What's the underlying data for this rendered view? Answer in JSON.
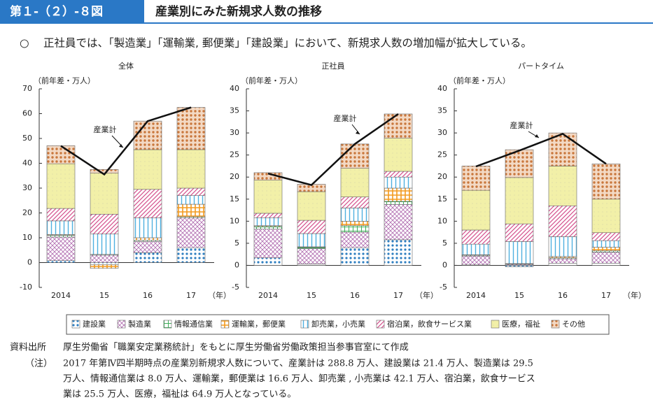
{
  "header": {
    "figure_no": "第１-（２）-８図",
    "title": "産業別にみた新規求人数の推移",
    "bullet": "○",
    "summary": "正社員では、「製造業」「運輸業, 郵便業」「建設業」において、新規求人数の増加幅が拡大している。"
  },
  "source": {
    "label": "資料出所",
    "text": "厚生労働省「職業安定業務統計」をもとに厚生労働省労働政策担当参事官室にて作成"
  },
  "note": {
    "label": "（注）",
    "lines": [
      "2017 年第Ⅳ四半期時点の産業別新規求人数について、産業計は 288.8 万人、建設業は 21.4 万人、製造業は 29.5",
      "万人、情報通信業は 8.0 万人、運輸業，郵便業は 16.6 万人、卸売業 , 小売業は 42.1 万人、宿泊業，飲食サービス",
      "業は 25.5 万人、医療，福祉は 64.9 万人となっている。"
    ]
  },
  "chart_data": [
    {
      "type": "bar",
      "stacked": true,
      "title": "全体",
      "y_label": "（前年差・万人）",
      "x_unit": "（年）",
      "categories": [
        "2014",
        "15",
        "16",
        "17"
      ],
      "ylim": [
        -10,
        70
      ],
      "yticks": [
        -10,
        0,
        10,
        20,
        30,
        40,
        50,
        60,
        70
      ],
      "series": [
        {
          "name": "建設業",
          "color": "#2f7fc1",
          "values": [
            0.8,
            -0.8,
            4,
            6
          ]
        },
        {
          "name": "製造業",
          "color": "#b06cb0",
          "values": [
            9.5,
            3,
            4.5,
            12
          ]
        },
        {
          "name": "情報通信業",
          "color": "#3fae5a",
          "values": [
            0.7,
            0.3,
            0.5,
            0.5
          ]
        },
        {
          "name": "運輸業，郵便業",
          "color": "#f39a1e",
          "values": [
            0.3,
            -1.5,
            1,
            5
          ]
        },
        {
          "name": "卸売業，小売業",
          "color": "#4fb0e0",
          "values": [
            5.5,
            8.2,
            8,
            3.5
          ]
        },
        {
          "name": "宿泊業，飲食サービス業",
          "color": "#d4508c",
          "values": [
            5,
            8,
            11.5,
            3
          ]
        },
        {
          "name": "医療，福祉",
          "color": "#f2f0a8",
          "values": [
            18,
            16.5,
            16,
            15.5
          ]
        },
        {
          "name": "その他",
          "color": "#c9773c",
          "values": [
            7.3,
            1.5,
            11.5,
            17
          ]
        }
      ],
      "total": {
        "name": "産業計",
        "color": "#111111",
        "values": [
          47,
          35.5,
          57,
          62.5
        ]
      }
    },
    {
      "type": "bar",
      "stacked": true,
      "title": "正社員",
      "y_label": "（前年差・万人）",
      "x_unit": "（年）",
      "categories": [
        "2014",
        "15",
        "16",
        "17"
      ],
      "ylim": [
        -5,
        40
      ],
      "yticks": [
        -5,
        0,
        5,
        10,
        15,
        20,
        25,
        30,
        35,
        40
      ],
      "series": [
        {
          "name": "建設業",
          "color": "#2f7fc1",
          "values": [
            1.7,
            0.3,
            4,
            5.8
          ]
        },
        {
          "name": "製造業",
          "color": "#b06cb0",
          "values": [
            6.5,
            3.5,
            3.5,
            8
          ]
        },
        {
          "name": "情報通信業",
          "color": "#3fae5a",
          "values": [
            0.6,
            0.3,
            1.5,
            0.7
          ]
        },
        {
          "name": "運輸業，郵便業",
          "color": "#f39a1e",
          "values": [
            0.2,
            0.1,
            1,
            3
          ]
        },
        {
          "name": "卸売業，小売業",
          "color": "#4fb0e0",
          "values": [
            1.8,
            3,
            3,
            2.5
          ]
        },
        {
          "name": "宿泊業，飲食サービス業",
          "color": "#d4508c",
          "values": [
            1,
            3,
            2.5,
            1.3
          ]
        },
        {
          "name": "医療，福祉",
          "color": "#f2f0a8",
          "values": [
            7.5,
            6.5,
            6.5,
            7.5
          ]
        },
        {
          "name": "その他",
          "color": "#c9773c",
          "values": [
            1.7,
            1.7,
            5.5,
            5.5
          ]
        }
      ],
      "total": {
        "name": "産業計",
        "color": "#111111",
        "values": [
          20.8,
          18.2,
          27.5,
          34.3
        ]
      }
    },
    {
      "type": "bar",
      "stacked": true,
      "title": "パートタイム",
      "y_label": "（前年差・万人）",
      "x_unit": "（年）",
      "categories": [
        "2014",
        "15",
        "16",
        "17"
      ],
      "ylim": [
        -5,
        40
      ],
      "yticks": [
        -5,
        0,
        5,
        10,
        15,
        20,
        25,
        30,
        35,
        40
      ],
      "series": [
        {
          "name": "建設業",
          "color": "#2f7fc1",
          "values": [
            0.1,
            -0.3,
            0.5,
            0.5
          ]
        },
        {
          "name": "製造業",
          "color": "#b06cb0",
          "values": [
            2,
            0.2,
            1,
            2.5
          ]
        },
        {
          "name": "情報通信業",
          "color": "#3fae5a",
          "values": [
            0.2,
            0.1,
            0.2,
            0.3
          ]
        },
        {
          "name": "運輸業，郵便業",
          "color": "#f39a1e",
          "values": [
            0.1,
            0.1,
            0.3,
            0.8
          ]
        },
        {
          "name": "卸売業，小売業",
          "color": "#4fb0e0",
          "values": [
            2.4,
            5,
            4.5,
            1.5
          ]
        },
        {
          "name": "宿泊業，飲食サービス業",
          "color": "#d4508c",
          "values": [
            3.2,
            4,
            7,
            1.8
          ]
        },
        {
          "name": "医療，福祉",
          "color": "#f2f0a8",
          "values": [
            9,
            10.5,
            9,
            7.6
          ]
        },
        {
          "name": "その他",
          "color": "#c9773c",
          "values": [
            5.5,
            6.3,
            7.5,
            8
          ]
        }
      ],
      "total": {
        "name": "産業計",
        "color": "#111111",
        "values": [
          22.4,
          26,
          29.8,
          23
        ]
      }
    }
  ]
}
